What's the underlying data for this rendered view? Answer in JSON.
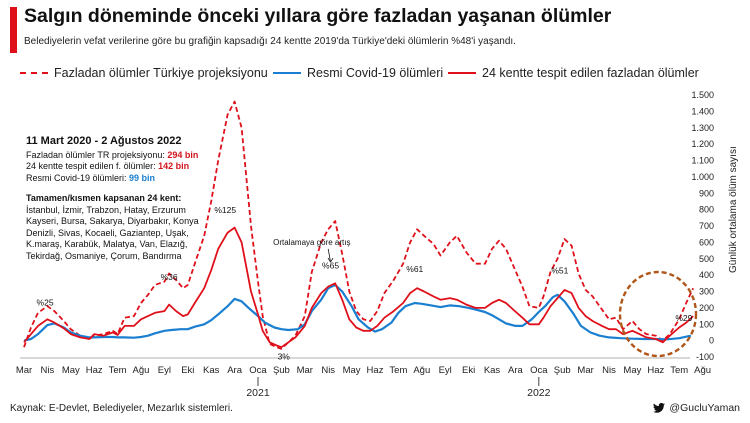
{
  "header": {
    "title": "Salgın döneminde önceki yıllara göre fazladan yaşanan ölümler",
    "subtitle": "Belediyelerin vefat verilerine göre bu grafiğin kapsadığı 24 kentte 2019'da Türkiye'deki ölümlerin %48'i yaşandı."
  },
  "legend": {
    "excess_tr": "Fazladan ölümler Türkiye projeksiyonu",
    "covid": "Resmi Covid-19 ölümleri",
    "excess_24": "24 kentte tespit edilen fazladan ölümler"
  },
  "info": {
    "period": "11 Mart 2020 - 2 Ağustos 2022",
    "line1_label": "Fazladan ölümler TR projeksiyonu: ",
    "line1_value": "294 bin",
    "line2_label": "24 kentte tespit edilen f. ölümler: ",
    "line2_value": "142 bin",
    "line3_label": "Resmi Covid-19 ölümleri: ",
    "line3_value": "99 bin",
    "cities_title": "Tamamen/kısmen kapsanan 24 kent:",
    "cities": "İstanbul, İzmir, Trabzon, Hatay, Erzurum Kayseri, Bursa, Sakarya, Diyarbakır, Konya Denizli, Sivas, Kocaeli, Gaziantep, Uşak, K.maraş, Karabük, Malatya, Van, Elazığ, Tekirdağ, Osmaniye, Çorum, Bandırma"
  },
  "footer": {
    "source": "Kaynak: E-Devlet, Belediyeler, Mezarlık sistemleri.",
    "author": "@GucluYaman"
  },
  "colors": {
    "red": "#e0101b",
    "blue": "#1a7fd0",
    "accent": "#e0101b"
  },
  "icons": {
    "author": "twitter-bird-icon"
  },
  "chart_data": {
    "type": "line",
    "x": [
      "Mar 2020",
      "Nis 2020",
      "May 2020",
      "Haz 2020",
      "Tem 2020",
      "Ağu 2020",
      "Eyl 2020",
      "Eki 2020",
      "Kas 2020",
      "Ara 2020",
      "Oca 2021",
      "Şub 2021",
      "Mar 2021",
      "Nis 2021",
      "May 2021",
      "Haz 2021",
      "Tem 2021",
      "Ağu 2021",
      "Eyl 2021",
      "Eki 2021",
      "Kas 2021",
      "Ara 2021",
      "Oca 2022",
      "Şub 2022",
      "Mar 2022",
      "Nis 2022",
      "May 2022",
      "Haz 2022",
      "Tem 2022",
      "Ağu 2022"
    ],
    "x_ticks": [
      "Mar",
      "Nis",
      "May",
      "Haz",
      "Tem",
      "Ağu",
      "Eyl",
      "Eki",
      "Kas",
      "Ara",
      "Oca",
      "Şub",
      "Mar",
      "Nis",
      "May",
      "Haz",
      "Tem",
      "Ağu",
      "Eyl",
      "Eki",
      "Kas",
      "Ara",
      "Oca",
      "Şub",
      "Mar",
      "Nis",
      "May",
      "Haz",
      "Tem",
      "Ağu"
    ],
    "year_labels": [
      {
        "label": "2021",
        "at": "Oca 2021"
      },
      {
        "label": "2022",
        "at": "Oca 2022"
      }
    ],
    "ylabel": "Günlük ortalama ölüm sayısı",
    "ylim": [
      -100,
      1500
    ],
    "yticks": [
      -100,
      0,
      100,
      200,
      300,
      400,
      500,
      600,
      700,
      800,
      900,
      1000,
      1100,
      1200,
      1300,
      1400,
      1500
    ],
    "ytick_labels": [
      "-100",
      "0",
      "100",
      "200",
      "300",
      "400",
      "500",
      "600",
      "700",
      "800",
      "900",
      "1.000",
      "1.100",
      "1.200",
      "1.300",
      "1.400",
      "1.500"
    ],
    "grid": false,
    "legend_position": "top",
    "series": [
      {
        "name": "Fazladan ölümler Türkiye projeksiyonu",
        "style": "dashed",
        "color": "#e0101b",
        "points": [
          [
            0,
            -40
          ],
          [
            0.3,
            80
          ],
          [
            0.6,
            170
          ],
          [
            1.0,
            210
          ],
          [
            1.3,
            180
          ],
          [
            1.7,
            120
          ],
          [
            2.0,
            70
          ],
          [
            2.4,
            30
          ],
          [
            2.8,
            10
          ],
          [
            3.0,
            30
          ],
          [
            3.4,
            40
          ],
          [
            3.8,
            60
          ],
          [
            4.0,
            40
          ],
          [
            4.3,
            140
          ],
          [
            4.7,
            150
          ],
          [
            5.0,
            230
          ],
          [
            5.3,
            280
          ],
          [
            5.6,
            340
          ],
          [
            6.0,
            360
          ],
          [
            6.2,
            410
          ],
          [
            6.5,
            370
          ],
          [
            6.8,
            320
          ],
          [
            7.0,
            340
          ],
          [
            7.3,
            470
          ],
          [
            7.7,
            640
          ],
          [
            8.0,
            850
          ],
          [
            8.3,
            1100
          ],
          [
            8.7,
            1380
          ],
          [
            9.0,
            1460
          ],
          [
            9.3,
            1300
          ],
          [
            9.5,
            1000
          ],
          [
            9.7,
            700
          ],
          [
            10.0,
            360
          ],
          [
            10.2,
            150
          ],
          [
            10.5,
            -20
          ],
          [
            10.8,
            -40
          ],
          [
            11.0,
            -50
          ],
          [
            11.3,
            -10
          ],
          [
            11.6,
            30
          ],
          [
            12.0,
            150
          ],
          [
            12.3,
            420
          ],
          [
            12.7,
            600
          ],
          [
            13.0,
            680
          ],
          [
            13.3,
            730
          ],
          [
            13.6,
            530
          ],
          [
            13.9,
            300
          ],
          [
            14.2,
            180
          ],
          [
            14.5,
            130
          ],
          [
            14.8,
            120
          ],
          [
            15.1,
            180
          ],
          [
            15.4,
            290
          ],
          [
            15.8,
            370
          ],
          [
            16.2,
            470
          ],
          [
            16.5,
            600
          ],
          [
            16.8,
            680
          ],
          [
            17.1,
            640
          ],
          [
            17.5,
            590
          ],
          [
            17.8,
            520
          ],
          [
            18.2,
            600
          ],
          [
            18.5,
            640
          ],
          [
            18.9,
            540
          ],
          [
            19.3,
            470
          ],
          [
            19.7,
            470
          ],
          [
            20.0,
            560
          ],
          [
            20.3,
            610
          ],
          [
            20.6,
            560
          ],
          [
            20.9,
            460
          ],
          [
            21.3,
            330
          ],
          [
            21.6,
            210
          ],
          [
            22.0,
            200
          ],
          [
            22.2,
            270
          ],
          [
            22.5,
            420
          ],
          [
            22.8,
            500
          ],
          [
            23.1,
            620
          ],
          [
            23.4,
            580
          ],
          [
            23.7,
            410
          ],
          [
            24.0,
            310
          ],
          [
            24.3,
            270
          ],
          [
            24.7,
            190
          ],
          [
            25.0,
            130
          ],
          [
            25.3,
            140
          ],
          [
            25.6,
            70
          ],
          [
            26.0,
            120
          ],
          [
            26.3,
            70
          ],
          [
            26.6,
            40
          ],
          [
            27.0,
            30
          ],
          [
            27.3,
            0
          ],
          [
            27.6,
            40
          ],
          [
            28.0,
            130
          ],
          [
            28.3,
            230
          ],
          [
            28.6,
            320
          ]
        ]
      },
      {
        "name": "Resmi Covid-19 ölümleri",
        "style": "solid",
        "color": "#1a7fd0",
        "points": [
          [
            0,
            0
          ],
          [
            0.3,
            10
          ],
          [
            0.6,
            40
          ],
          [
            1.0,
            95
          ],
          [
            1.3,
            105
          ],
          [
            1.7,
            80
          ],
          [
            2.0,
            50
          ],
          [
            2.4,
            30
          ],
          [
            2.8,
            20
          ],
          [
            3.0,
            20
          ],
          [
            3.4,
            22
          ],
          [
            3.8,
            22
          ],
          [
            4.0,
            20
          ],
          [
            4.3,
            20
          ],
          [
            4.7,
            18
          ],
          [
            5.0,
            22
          ],
          [
            5.3,
            30
          ],
          [
            5.6,
            45
          ],
          [
            6.0,
            60
          ],
          [
            6.3,
            65
          ],
          [
            6.7,
            70
          ],
          [
            7.0,
            70
          ],
          [
            7.3,
            85
          ],
          [
            7.7,
            100
          ],
          [
            8.0,
            125
          ],
          [
            8.3,
            160
          ],
          [
            8.7,
            210
          ],
          [
            9.0,
            255
          ],
          [
            9.3,
            240
          ],
          [
            9.6,
            200
          ],
          [
            10.0,
            150
          ],
          [
            10.3,
            110
          ],
          [
            10.7,
            80
          ],
          [
            11.0,
            70
          ],
          [
            11.3,
            65
          ],
          [
            11.7,
            70
          ],
          [
            12.0,
            100
          ],
          [
            12.3,
            180
          ],
          [
            12.7,
            250
          ],
          [
            13.0,
            320
          ],
          [
            13.3,
            340
          ],
          [
            13.6,
            300
          ],
          [
            14.0,
            210
          ],
          [
            14.3,
            130
          ],
          [
            14.7,
            80
          ],
          [
            15.0,
            55
          ],
          [
            15.3,
            70
          ],
          [
            15.7,
            110
          ],
          [
            16.0,
            170
          ],
          [
            16.3,
            210
          ],
          [
            16.7,
            230
          ],
          [
            17.0,
            225
          ],
          [
            17.4,
            215
          ],
          [
            17.8,
            205
          ],
          [
            18.2,
            215
          ],
          [
            18.6,
            210
          ],
          [
            19.0,
            200
          ],
          [
            19.3,
            190
          ],
          [
            19.7,
            175
          ],
          [
            20.0,
            155
          ],
          [
            20.3,
            130
          ],
          [
            20.6,
            105
          ],
          [
            21.0,
            90
          ],
          [
            21.3,
            90
          ],
          [
            21.7,
            130
          ],
          [
            22.0,
            175
          ],
          [
            22.3,
            215
          ],
          [
            22.6,
            265
          ],
          [
            22.8,
            280
          ],
          [
            23.1,
            240
          ],
          [
            23.5,
            160
          ],
          [
            23.8,
            90
          ],
          [
            24.2,
            50
          ],
          [
            24.6,
            30
          ],
          [
            25.0,
            20
          ],
          [
            25.5,
            15
          ],
          [
            26.0,
            12
          ],
          [
            26.5,
            10
          ],
          [
            27.0,
            10
          ],
          [
            27.5,
            8
          ],
          [
            28.0,
            15
          ],
          [
            28.5,
            30
          ]
        ]
      },
      {
        "name": "24 kentte tespit edilen fazladan ölümler",
        "style": "solid",
        "color": "#e0101b",
        "points": [
          [
            0,
            -10
          ],
          [
            0.3,
            40
          ],
          [
            0.6,
            90
          ],
          [
            1.0,
            130
          ],
          [
            1.3,
            110
          ],
          [
            1.7,
            75
          ],
          [
            2.0,
            40
          ],
          [
            2.4,
            20
          ],
          [
            2.8,
            10
          ],
          [
            3.0,
            40
          ],
          [
            3.4,
            30
          ],
          [
            3.8,
            50
          ],
          [
            4.0,
            35
          ],
          [
            4.3,
            90
          ],
          [
            4.7,
            90
          ],
          [
            5.0,
            130
          ],
          [
            5.3,
            150
          ],
          [
            5.6,
            170
          ],
          [
            6.0,
            180
          ],
          [
            6.2,
            220
          ],
          [
            6.5,
            180
          ],
          [
            6.8,
            150
          ],
          [
            7.0,
            160
          ],
          [
            7.3,
            230
          ],
          [
            7.7,
            320
          ],
          [
            8.0,
            430
          ],
          [
            8.3,
            560
          ],
          [
            8.7,
            660
          ],
          [
            9.0,
            690
          ],
          [
            9.3,
            600
          ],
          [
            9.5,
            450
          ],
          [
            9.7,
            300
          ],
          [
            10.0,
            160
          ],
          [
            10.2,
            60
          ],
          [
            10.5,
            -10
          ],
          [
            10.8,
            -30
          ],
          [
            11.0,
            -40
          ],
          [
            11.3,
            -10
          ],
          [
            11.6,
            20
          ],
          [
            12.0,
            90
          ],
          [
            12.3,
            200
          ],
          [
            12.7,
            290
          ],
          [
            13.0,
            330
          ],
          [
            13.3,
            350
          ],
          [
            13.6,
            250
          ],
          [
            13.9,
            130
          ],
          [
            14.2,
            80
          ],
          [
            14.5,
            60
          ],
          [
            14.8,
            60
          ],
          [
            15.1,
            90
          ],
          [
            15.4,
            140
          ],
          [
            15.8,
            180
          ],
          [
            16.2,
            230
          ],
          [
            16.5,
            290
          ],
          [
            16.8,
            320
          ],
          [
            17.1,
            300
          ],
          [
            17.5,
            270
          ],
          [
            17.8,
            250
          ],
          [
            18.2,
            260
          ],
          [
            18.5,
            250
          ],
          [
            18.9,
            220
          ],
          [
            19.3,
            200
          ],
          [
            19.7,
            200
          ],
          [
            20.0,
            230
          ],
          [
            20.3,
            250
          ],
          [
            20.6,
            230
          ],
          [
            20.9,
            190
          ],
          [
            21.3,
            140
          ],
          [
            21.6,
            100
          ],
          [
            22.0,
            100
          ],
          [
            22.2,
            140
          ],
          [
            22.5,
            210
          ],
          [
            22.8,
            260
          ],
          [
            23.1,
            310
          ],
          [
            23.4,
            290
          ],
          [
            23.7,
            200
          ],
          [
            24.0,
            150
          ],
          [
            24.3,
            120
          ],
          [
            24.7,
            90
          ],
          [
            25.0,
            70
          ],
          [
            25.3,
            70
          ],
          [
            25.6,
            40
          ],
          [
            26.0,
            60
          ],
          [
            26.3,
            40
          ],
          [
            26.6,
            20
          ],
          [
            27.0,
            10
          ],
          [
            27.3,
            -10
          ],
          [
            27.6,
            30
          ],
          [
            28.0,
            80
          ],
          [
            28.3,
            110
          ],
          [
            28.6,
            150
          ]
        ]
      }
    ],
    "annotations": [
      {
        "text": "%25",
        "x": 0.9,
        "y": 215
      },
      {
        "text": "%36",
        "x": 6.2,
        "y": 370
      },
      {
        "text": "%125",
        "x": 8.6,
        "y": 780
      },
      {
        "text": "3%",
        "x": 11.1,
        "y": -115
      },
      {
        "text": "Ortalamaya göre artış",
        "x": 12.3,
        "y": 585
      },
      {
        "text": "%65",
        "x": 13.1,
        "y": 440
      },
      {
        "text": "%61",
        "x": 16.7,
        "y": 420
      },
      {
        "text": "%51",
        "x": 22.9,
        "y": 410
      },
      {
        "text": "%29",
        "x": 28.2,
        "y": 120
      }
    ]
  }
}
